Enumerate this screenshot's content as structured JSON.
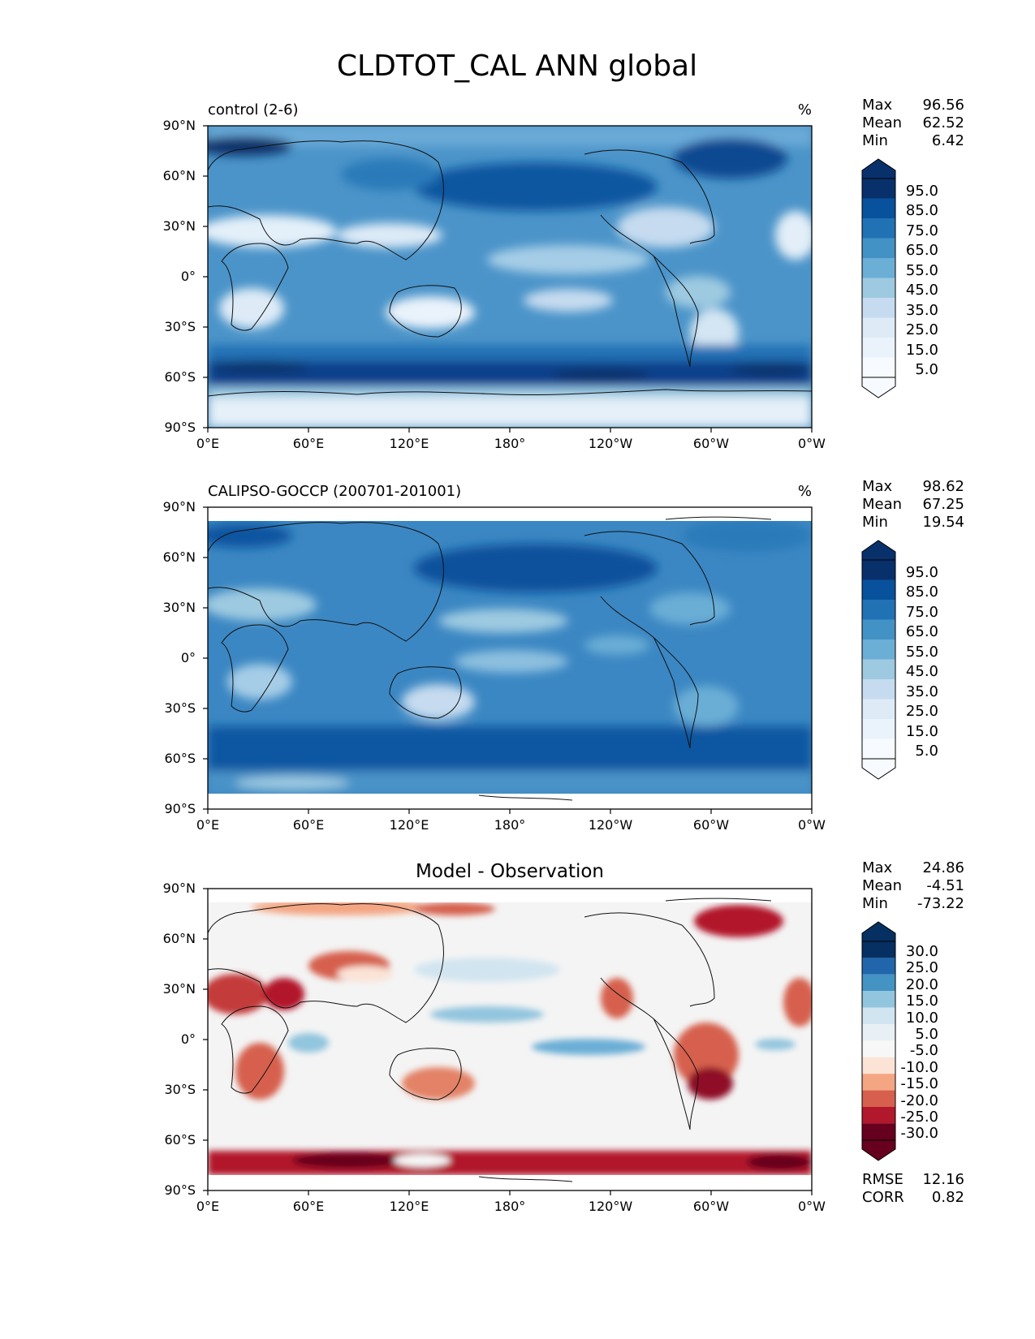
{
  "figure": {
    "title": "CLDTOT_CAL ANN global"
  },
  "axis_ticks": {
    "x": [
      "0°E",
      "60°E",
      "120°E",
      "180°",
      "120°W",
      "60°W",
      "0°W"
    ],
    "y": [
      "90°N",
      "60°N",
      "30°N",
      "0°",
      "30°S",
      "60°S",
      "90°S"
    ]
  },
  "stat_labels": {
    "max": "Max",
    "mean": "Mean",
    "min": "Min",
    "rmse": "RMSE",
    "corr": "CORR"
  },
  "panels": [
    {
      "id": "model",
      "title_left": "control (2-6)",
      "title_center": "",
      "units": "%",
      "stats": {
        "max": "96.56",
        "mean": "62.52",
        "min": "6.42"
      },
      "colorbar": {
        "labels": [
          "95.0",
          "85.0",
          "75.0",
          "65.0",
          "55.0",
          "45.0",
          "35.0",
          "25.0",
          "15.0",
          "5.0"
        ],
        "colors": [
          "#08306b",
          "#08519c",
          "#2171b5",
          "#4292c6",
          "#6baed6",
          "#9ecae1",
          "#c6dbef",
          "#deebf7",
          "#eaf3fb",
          "#f7fbff"
        ]
      }
    },
    {
      "id": "observation",
      "title_left": "CALIPSO-GOCCP (200701-201001)",
      "title_center": "",
      "units": "%",
      "stats": {
        "max": "98.62",
        "mean": "67.25",
        "min": "19.54"
      },
      "colorbar": {
        "labels": [
          "95.0",
          "85.0",
          "75.0",
          "65.0",
          "55.0",
          "45.0",
          "35.0",
          "25.0",
          "15.0",
          "5.0"
        ],
        "colors": [
          "#08306b",
          "#08519c",
          "#2171b5",
          "#4292c6",
          "#6baed6",
          "#9ecae1",
          "#c6dbef",
          "#deebf7",
          "#eaf3fb",
          "#f7fbff"
        ]
      }
    },
    {
      "id": "difference",
      "title_left": "",
      "title_center": "Model - Observation",
      "units": "",
      "stats": {
        "max": "24.86",
        "mean": "-4.51",
        "min": "-73.22",
        "rmse": "12.16",
        "corr": "0.82"
      },
      "colorbar": {
        "labels": [
          "30.0",
          "25.0",
          "20.0",
          "15.0",
          "10.0",
          "5.0",
          "-5.0",
          "-10.0",
          "-15.0",
          "-20.0",
          "-25.0",
          "-30.0"
        ],
        "colors": [
          "#053061",
          "#2166ac",
          "#4393c3",
          "#92c5de",
          "#d1e5f0",
          "#e8f0f5",
          "#f7f7f7",
          "#fbe3d6",
          "#f4a582",
          "#d6604d",
          "#b2182b",
          "#67001f"
        ]
      }
    }
  ],
  "chart_data": [
    {
      "type": "heatmap",
      "title": "control (2-6)",
      "units": "%",
      "x_ticks": [
        "0°E",
        "60°E",
        "120°E",
        "180°",
        "120°W",
        "60°W",
        "0°W"
      ],
      "y_ticks": [
        "90°N",
        "60°N",
        "30°N",
        "0°",
        "30°S",
        "60°S",
        "90°S"
      ],
      "xlim": [
        0,
        360
      ],
      "ylim": [
        -90,
        90
      ],
      "stats": {
        "max": 96.56,
        "mean": 62.52,
        "min": 6.42
      },
      "levels": [
        5,
        15,
        25,
        35,
        45,
        55,
        65,
        75,
        85,
        95
      ]
    },
    {
      "type": "heatmap",
      "title": "CALIPSO-GOCCP (200701-201001)",
      "units": "%",
      "x_ticks": [
        "0°E",
        "60°E",
        "120°E",
        "180°",
        "120°W",
        "60°W",
        "0°W"
      ],
      "y_ticks": [
        "90°N",
        "60°N",
        "30°N",
        "0°",
        "30°S",
        "60°S",
        "90°S"
      ],
      "xlim": [
        0,
        360
      ],
      "ylim": [
        -90,
        90
      ],
      "stats": {
        "max": 98.62,
        "mean": 67.25,
        "min": 19.54
      },
      "levels": [
        5,
        15,
        25,
        35,
        45,
        55,
        65,
        75,
        85,
        95
      ]
    },
    {
      "type": "heatmap",
      "title": "Model - Observation",
      "x_ticks": [
        "0°E",
        "60°E",
        "120°E",
        "180°",
        "120°W",
        "60°W",
        "0°W"
      ],
      "y_ticks": [
        "90°N",
        "60°N",
        "30°N",
        "0°",
        "30°S",
        "60°S",
        "90°S"
      ],
      "xlim": [
        0,
        360
      ],
      "ylim": [
        -90,
        90
      ],
      "stats": {
        "max": 24.86,
        "mean": -4.51,
        "min": -73.22,
        "rmse": 12.16,
        "corr": 0.82
      },
      "levels": [
        -30,
        -25,
        -20,
        -15,
        -10,
        -5,
        5,
        10,
        15,
        20,
        25,
        30
      ]
    }
  ]
}
